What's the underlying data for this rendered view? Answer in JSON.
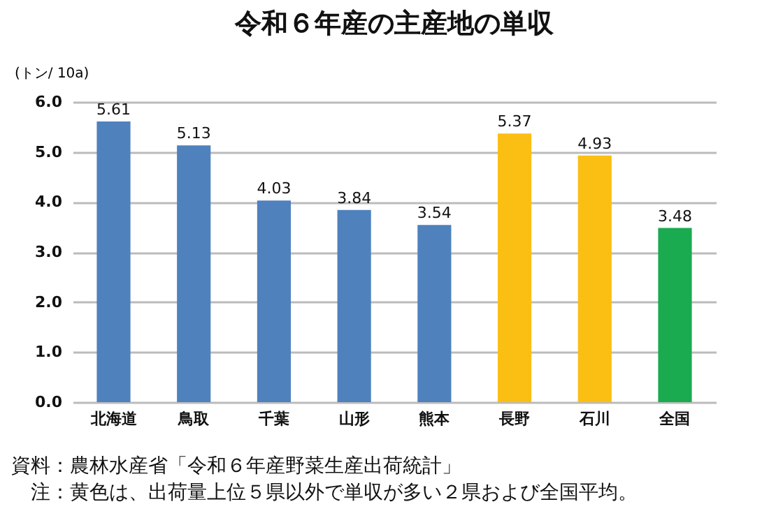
{
  "chart_data": {
    "type": "bar",
    "title": "令和６年産の主産地の単収",
    "ylabel": "(トン/ 10a)",
    "categories": [
      "北海道",
      "鳥取",
      "千葉",
      "山形",
      "熊本",
      "長野",
      "石川",
      "全国"
    ],
    "values": [
      5.61,
      5.13,
      4.03,
      3.84,
      3.54,
      5.37,
      4.93,
      3.48
    ],
    "colors": [
      "#4f81bd",
      "#4f81bd",
      "#4f81bd",
      "#4f81bd",
      "#4f81bd",
      "#fbbf14",
      "#fbbf14",
      "#1aaa50"
    ],
    "ylim": [
      0,
      6
    ],
    "yticks": [
      {
        "value": 0,
        "label": "0.0"
      },
      {
        "value": 1,
        "label": "1.0"
      },
      {
        "value": 2,
        "label": "2.0"
      },
      {
        "value": 3,
        "label": "3.0"
      },
      {
        "value": 4,
        "label": "4.0"
      },
      {
        "value": 5,
        "label": "5.0"
      },
      {
        "value": 6,
        "label": "6.0"
      }
    ],
    "grid": "y",
    "data_labels": true,
    "annotations": [
      "資料：農林水産省「令和６年産野菜生産出荷統計」",
      "　注：黄色は、出荷量上位５県以外で単収が多い２県および全国平均。"
    ]
  }
}
